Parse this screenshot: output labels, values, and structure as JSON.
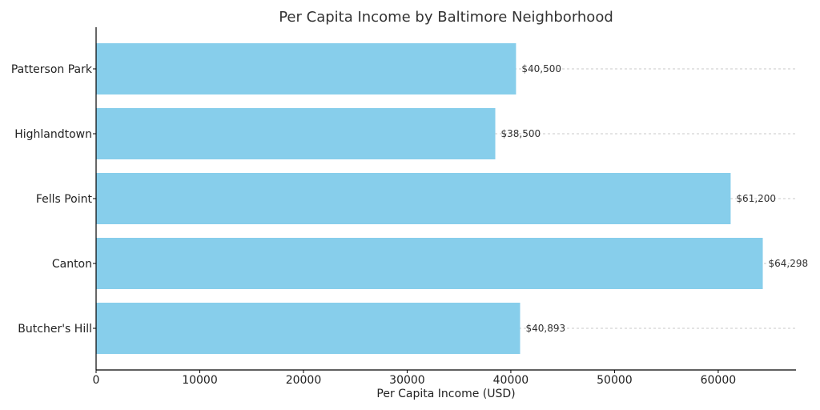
{
  "chart_data": {
    "type": "bar",
    "orientation": "horizontal",
    "title": "Per Capita Income by Baltimore Neighborhood",
    "xlabel": "Per Capita Income (USD)",
    "ylabel": "",
    "categories": [
      "Patterson Park",
      "Highlandtown",
      "Fells Point",
      "Canton",
      "Butcher's Hill"
    ],
    "values": [
      40500,
      38500,
      61200,
      64298,
      40893
    ],
    "data_labels": [
      "$40,500",
      "$38,500",
      "$61,200",
      "$64,298",
      "$40,893"
    ],
    "x_ticks": [
      0,
      10000,
      20000,
      30000,
      40000,
      50000,
      60000
    ],
    "xlim": [
      0,
      67500
    ],
    "grid": "dashed horizontal lines at bars",
    "bar_color": "#87CEEB"
  }
}
